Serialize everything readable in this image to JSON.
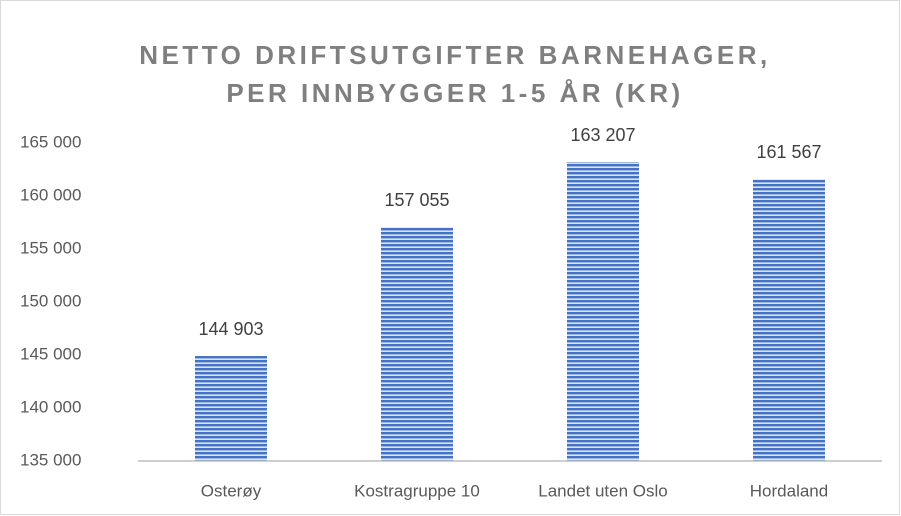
{
  "chart_data": {
    "type": "bar",
    "title": [
      "NETTO DRIFTSUTGIFTER BARNEHAGER,",
      "PER INNBYGGER 1-5 ÅR (KR)"
    ],
    "categories": [
      "Osterøy",
      "Kostragruppe 10",
      "Landet uten Oslo",
      "Hordaland"
    ],
    "values": [
      144903,
      157055,
      163207,
      161567
    ],
    "value_labels": [
      "144 903",
      "157 055",
      "163 207",
      "161 567"
    ],
    "color": "#4472c4",
    "ylim": [
      135000,
      165000
    ],
    "yticks": [
      {
        "value": 135000,
        "label": "135 000"
      },
      {
        "value": 140000,
        "label": "140 000"
      },
      {
        "value": 145000,
        "label": "145 000"
      },
      {
        "value": 150000,
        "label": "150 000"
      },
      {
        "value": 155000,
        "label": "155 000"
      },
      {
        "value": 160000,
        "label": "160 000"
      },
      {
        "value": 165000,
        "label": "165 000"
      }
    ],
    "grid": false
  }
}
